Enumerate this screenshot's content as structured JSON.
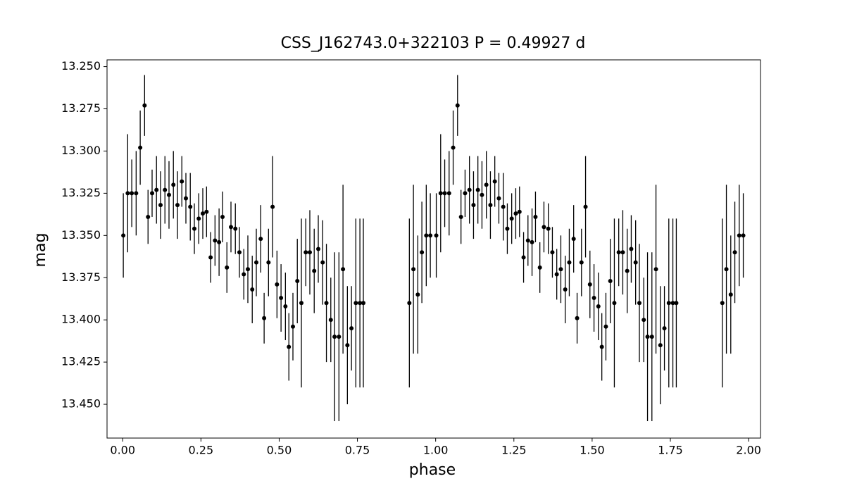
{
  "chart_data": {
    "type": "scatter",
    "title": "CSS_J162743.0+322103   P = 0.49927 d",
    "x_label": "phase",
    "y_label": "mag",
    "color": "#000000",
    "x": [
      0.002,
      0.016,
      0.029,
      0.043,
      0.056,
      0.07,
      0.081,
      0.094,
      0.108,
      0.121,
      0.135,
      0.148,
      0.162,
      0.175,
      0.189,
      0.202,
      0.216,
      0.229,
      0.243,
      0.256,
      0.268,
      0.281,
      0.295,
      0.308,
      0.319,
      0.333,
      0.346,
      0.36,
      0.373,
      0.387,
      0.4,
      0.414,
      0.427,
      0.441,
      0.452,
      0.466,
      0.479,
      0.493,
      0.506,
      0.52,
      0.531,
      0.544,
      0.558,
      0.571,
      0.585,
      0.598,
      0.612,
      0.625,
      0.639,
      0.651,
      0.665,
      0.677,
      0.691,
      0.704,
      0.718,
      0.731,
      0.745,
      0.758,
      0.769,
      0.916,
      0.929,
      0.943,
      0.956,
      0.97,
      0.983,
      1.002,
      1.016,
      1.029,
      1.043,
      1.056,
      1.07,
      1.081,
      1.094,
      1.108,
      1.121,
      1.135,
      1.148,
      1.162,
      1.175,
      1.189,
      1.202,
      1.216,
      1.229,
      1.243,
      1.256,
      1.268,
      1.281,
      1.295,
      1.308,
      1.319,
      1.333,
      1.346,
      1.36,
      1.373,
      1.387,
      1.4,
      1.414,
      1.427,
      1.441,
      1.452,
      1.466,
      1.479,
      1.493,
      1.506,
      1.52,
      1.531,
      1.544,
      1.558,
      1.571,
      1.585,
      1.598,
      1.612,
      1.625,
      1.639,
      1.651,
      1.665,
      1.677,
      1.691,
      1.704,
      1.718,
      1.731,
      1.745,
      1.758,
      1.769,
      1.916,
      1.929,
      1.943,
      1.956,
      1.97,
      1.983
    ],
    "values": [
      13.35,
      13.325,
      13.325,
      13.325,
      13.298,
      13.273,
      13.339,
      13.325,
      13.323,
      13.332,
      13.323,
      13.326,
      13.32,
      13.332,
      13.318,
      13.328,
      13.333,
      13.346,
      13.34,
      13.337,
      13.336,
      13.363,
      13.353,
      13.354,
      13.339,
      13.369,
      13.345,
      13.346,
      13.36,
      13.373,
      13.37,
      13.382,
      13.366,
      13.352,
      13.399,
      13.366,
      13.333,
      13.379,
      13.387,
      13.392,
      13.416,
      13.404,
      13.377,
      13.39,
      13.36,
      13.36,
      13.371,
      13.358,
      13.366,
      13.39,
      13.4,
      13.41,
      13.41,
      13.37,
      13.415,
      13.405,
      13.39,
      13.39,
      13.39,
      13.39,
      13.37,
      13.385,
      13.36,
      13.35,
      13.35,
      13.35,
      13.325,
      13.325,
      13.325,
      13.298,
      13.273,
      13.339,
      13.325,
      13.323,
      13.332,
      13.323,
      13.326,
      13.32,
      13.332,
      13.318,
      13.328,
      13.333,
      13.346,
      13.34,
      13.337,
      13.336,
      13.363,
      13.353,
      13.354,
      13.339,
      13.369,
      13.345,
      13.346,
      13.36,
      13.373,
      13.37,
      13.382,
      13.366,
      13.352,
      13.399,
      13.366,
      13.333,
      13.379,
      13.387,
      13.392,
      13.416,
      13.404,
      13.377,
      13.39,
      13.36,
      13.36,
      13.371,
      13.358,
      13.366,
      13.39,
      13.4,
      13.41,
      13.41,
      13.37,
      13.415,
      13.405,
      13.39,
      13.39,
      13.39,
      13.39,
      13.37,
      13.385,
      13.36,
      13.35,
      13.35
    ],
    "yerr": [
      0.025,
      0.035,
      0.02,
      0.025,
      0.022,
      0.018,
      0.016,
      0.014,
      0.02,
      0.02,
      0.02,
      0.02,
      0.02,
      0.02,
      0.015,
      0.015,
      0.02,
      0.015,
      0.015,
      0.015,
      0.015,
      0.015,
      0.015,
      0.02,
      0.015,
      0.015,
      0.015,
      0.015,
      0.015,
      0.015,
      0.02,
      0.02,
      0.02,
      0.02,
      0.015,
      0.02,
      0.03,
      0.02,
      0.02,
      0.02,
      0.02,
      0.02,
      0.025,
      0.05,
      0.02,
      0.025,
      0.025,
      0.02,
      0.025,
      0.035,
      0.025,
      0.05,
      0.05,
      0.05,
      0.035,
      0.025,
      0.05,
      0.05,
      0.05,
      0.05,
      0.05,
      0.035,
      0.03,
      0.03,
      0.025,
      0.025,
      0.035,
      0.02,
      0.025,
      0.022,
      0.018,
      0.016,
      0.014,
      0.02,
      0.02,
      0.02,
      0.02,
      0.02,
      0.02,
      0.015,
      0.015,
      0.02,
      0.015,
      0.015,
      0.015,
      0.015,
      0.015,
      0.015,
      0.02,
      0.015,
      0.015,
      0.015,
      0.015,
      0.015,
      0.015,
      0.02,
      0.02,
      0.02,
      0.02,
      0.015,
      0.02,
      0.03,
      0.02,
      0.02,
      0.02,
      0.02,
      0.02,
      0.025,
      0.05,
      0.02,
      0.025,
      0.025,
      0.02,
      0.025,
      0.035,
      0.025,
      0.05,
      0.05,
      0.05,
      0.035,
      0.025,
      0.05,
      0.05,
      0.05,
      0.05,
      0.05,
      0.035,
      0.03,
      0.03,
      0.025
    ],
    "xlim": [
      -0.05,
      2.038
    ],
    "ylim": [
      13.47,
      13.246
    ],
    "xticks": [
      {
        "value": 0,
        "label": "0.00"
      },
      {
        "value": 0.25,
        "label": "0.25"
      },
      {
        "value": 0.5,
        "label": "0.50"
      },
      {
        "value": 0.75,
        "label": "0.75"
      },
      {
        "value": 1,
        "label": "1.00"
      },
      {
        "value": 1.25,
        "label": "1.25"
      },
      {
        "value": 1.5,
        "label": "1.50"
      },
      {
        "value": 1.75,
        "label": "1.75"
      },
      {
        "value": 2,
        "label": "2.00"
      }
    ],
    "yticks": [
      {
        "value": 13.25,
        "label": "13.250"
      },
      {
        "value": 13.275,
        "label": "13.275"
      },
      {
        "value": 13.3,
        "label": "13.300"
      },
      {
        "value": 13.325,
        "label": "13.325"
      },
      {
        "value": 13.35,
        "label": "13.350"
      },
      {
        "value": 13.375,
        "label": "13.375"
      },
      {
        "value": 13.4,
        "label": "13.400"
      },
      {
        "value": 13.425,
        "label": "13.425"
      },
      {
        "value": 13.45,
        "label": "13.450"
      }
    ]
  }
}
